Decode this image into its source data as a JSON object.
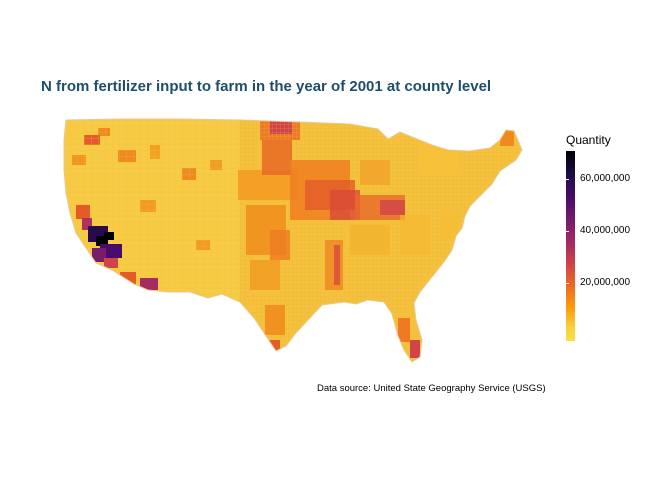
{
  "title": "N from fertilizer input to farm in the year of 2001 at county level",
  "legend": {
    "title": "Quantity",
    "ticks": [
      "60,000,000",
      "40,000,000",
      "20,000,000"
    ],
    "colors": [
      "#000004",
      "#4a0c6b",
      "#a52c60",
      "#ed6925",
      "#fb9b06",
      "#f7d13d"
    ]
  },
  "caption": "Data source: United State Geography Service (USGS)",
  "map": {
    "region": "contiguous-united-states",
    "base_color": "#f5c23a",
    "border_color": "#e0c49a"
  }
}
